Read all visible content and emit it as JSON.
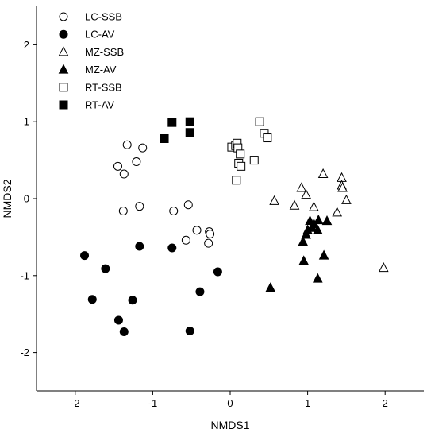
{
  "chart_data": {
    "type": "scatter",
    "xlabel": "NMDS1",
    "ylabel": "NMDS2",
    "xlim": [
      -2.5,
      2.5
    ],
    "ylim": [
      -2.5,
      2.5
    ],
    "xticks": [
      -2,
      -1,
      0,
      1,
      2
    ],
    "yticks": [
      -2,
      -1,
      0,
      1,
      2
    ],
    "xtick_labels": [
      "-2",
      "-1",
      "0",
      "1",
      "2"
    ],
    "ytick_labels": [
      "-2",
      "-1",
      "0",
      "1",
      "2"
    ],
    "grid": false,
    "legend_position": "top-left",
    "series": [
      {
        "name": "LC-SSB",
        "marker": "circle",
        "filled": false,
        "points": [
          [
            -1.33,
            0.7
          ],
          [
            -1.13,
            0.66
          ],
          [
            -1.21,
            0.48
          ],
          [
            -1.45,
            0.42
          ],
          [
            -1.37,
            0.32
          ],
          [
            -1.38,
            -0.16
          ],
          [
            -1.17,
            -0.1
          ],
          [
            -0.73,
            -0.16
          ],
          [
            -0.54,
            -0.08
          ],
          [
            -0.43,
            -0.41
          ],
          [
            -0.57,
            -0.54
          ],
          [
            -0.27,
            -0.43
          ],
          [
            -0.26,
            -0.46
          ],
          [
            -0.28,
            -0.58
          ]
        ]
      },
      {
        "name": "LC-AV",
        "marker": "circle",
        "filled": true,
        "points": [
          [
            -1.88,
            -0.74
          ],
          [
            -1.61,
            -0.91
          ],
          [
            -1.17,
            -0.62
          ],
          [
            -0.75,
            -0.64
          ],
          [
            -0.16,
            -0.95
          ],
          [
            -1.78,
            -1.31
          ],
          [
            -1.26,
            -1.32
          ],
          [
            -0.39,
            -1.21
          ],
          [
            -1.44,
            -1.58
          ],
          [
            -1.37,
            -1.73
          ],
          [
            -0.52,
            -1.72
          ]
        ]
      },
      {
        "name": "MZ-SSB",
        "marker": "triangle",
        "filled": false,
        "points": [
          [
            1.2,
            0.32
          ],
          [
            1.44,
            0.27
          ],
          [
            1.44,
            0.17
          ],
          [
            1.45,
            0.14
          ],
          [
            0.92,
            0.14
          ],
          [
            0.98,
            0.05
          ],
          [
            1.5,
            -0.02
          ],
          [
            0.57,
            -0.03
          ],
          [
            0.83,
            -0.09
          ],
          [
            1.08,
            -0.11
          ],
          [
            1.38,
            -0.18
          ],
          [
            1.98,
            -0.9
          ]
        ]
      },
      {
        "name": "MZ-AV",
        "marker": "triangle",
        "filled": true,
        "points": [
          [
            1.03,
            -0.29
          ],
          [
            1.08,
            -0.33
          ],
          [
            1.14,
            -0.28
          ],
          [
            1.25,
            -0.29
          ],
          [
            1.0,
            -0.41
          ],
          [
            1.06,
            -0.38
          ],
          [
            1.13,
            -0.41
          ],
          [
            0.98,
            -0.47
          ],
          [
            0.94,
            -0.56
          ],
          [
            1.21,
            -0.74
          ],
          [
            0.95,
            -0.81
          ],
          [
            1.13,
            -1.04
          ],
          [
            0.52,
            -1.16
          ]
        ]
      },
      {
        "name": "RT-SSB",
        "marker": "square",
        "filled": false,
        "points": [
          [
            0.38,
            1.0
          ],
          [
            0.44,
            0.85
          ],
          [
            0.48,
            0.79
          ],
          [
            0.02,
            0.67
          ],
          [
            0.07,
            0.69
          ],
          [
            0.09,
            0.72
          ],
          [
            0.1,
            0.66
          ],
          [
            0.13,
            0.58
          ],
          [
            0.11,
            0.46
          ],
          [
            0.14,
            0.42
          ],
          [
            0.31,
            0.5
          ],
          [
            0.08,
            0.24
          ]
        ]
      },
      {
        "name": "RT-AV",
        "marker": "square",
        "filled": true,
        "points": [
          [
            -0.75,
            0.99
          ],
          [
            -0.52,
            1.0
          ],
          [
            -0.52,
            0.86
          ],
          [
            -0.85,
            0.78
          ]
        ]
      }
    ]
  }
}
